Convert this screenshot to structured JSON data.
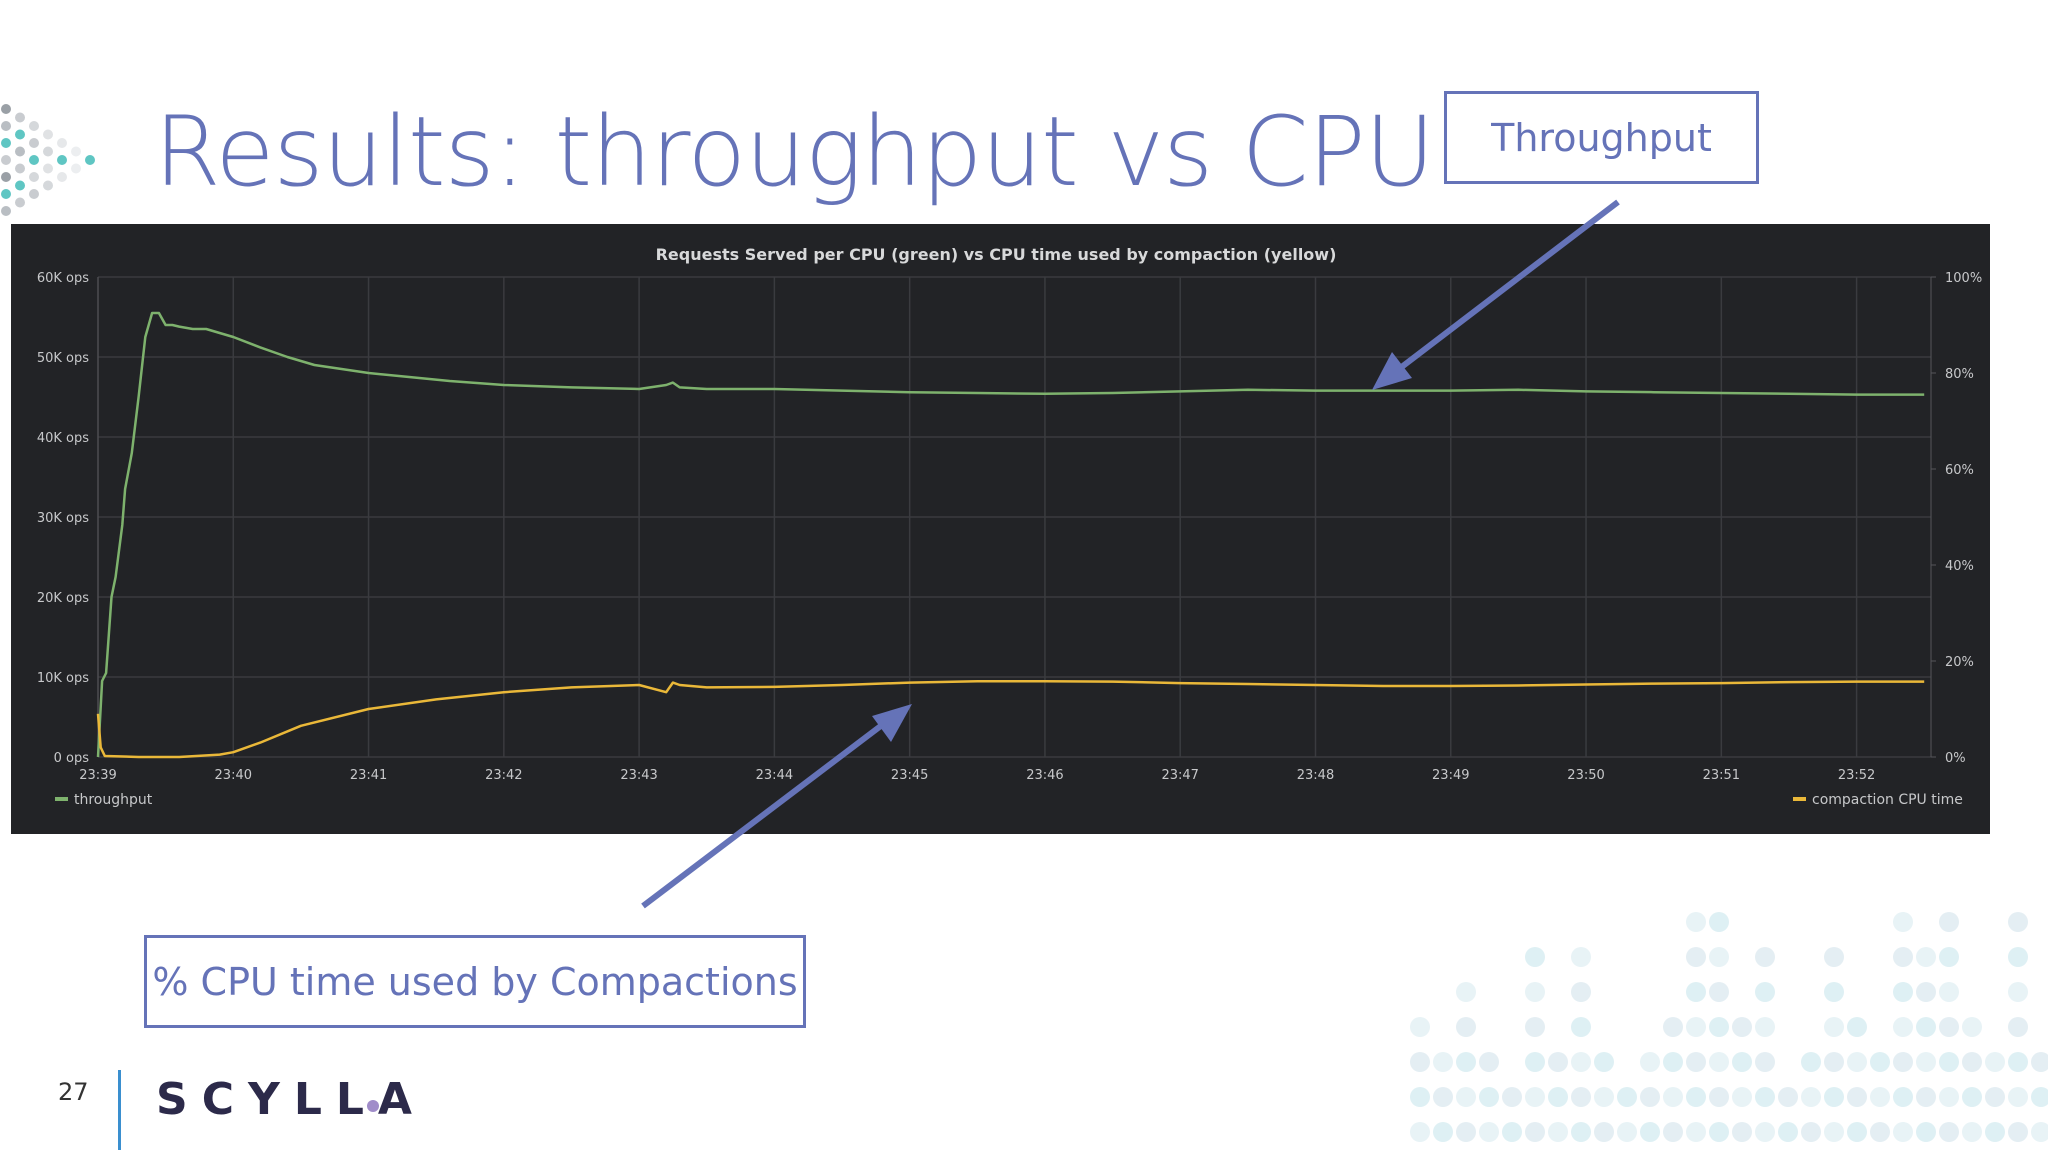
{
  "slide": {
    "title": "Results: throughput vs CPU",
    "page_number": "27",
    "logo_text": "SCYLLA"
  },
  "callouts": {
    "throughput": "Throughput",
    "cpu": "% CPU time used by Compactions"
  },
  "colors": {
    "title_blue": "#6573b8",
    "panel_bg": "#222326",
    "throughput_green": "#7eb26d",
    "compaction_yellow": "#eab839",
    "logo_dot": "#a08cc9"
  },
  "chart_data": {
    "type": "line",
    "title": "Requests Served per CPU (green) vs CPU time used by compaction (yellow)",
    "x_ticks": [
      "23:39",
      "23:40",
      "23:41",
      "23:42",
      "23:43",
      "23:44",
      "23:45",
      "23:46",
      "23:47",
      "23:48",
      "23:49",
      "23:50",
      "23:51",
      "23:52"
    ],
    "y_left_ticks": [
      "0 ops",
      "10K ops",
      "20K ops",
      "30K ops",
      "40K ops",
      "50K ops",
      "60K ops"
    ],
    "y_right_ticks": [
      "0%",
      "20%",
      "40%",
      "60%",
      "80%",
      "100%"
    ],
    "y_left_range": [
      0,
      60000
    ],
    "y_right_range": [
      0,
      100
    ],
    "x_range_minutes": [
      0,
      13.55
    ],
    "grid": true,
    "legend": "bottom",
    "series": [
      {
        "name": "throughput",
        "axis": "left",
        "color": "#7eb26d",
        "x": [
          0.0,
          0.03,
          0.06,
          0.1,
          0.13,
          0.18,
          0.2,
          0.25,
          0.3,
          0.35,
          0.4,
          0.45,
          0.5,
          0.55,
          0.6,
          0.7,
          0.8,
          0.9,
          1.0,
          1.2,
          1.4,
          1.6,
          1.8,
          2.0,
          2.3,
          2.6,
          3.0,
          3.5,
          4.0,
          4.2,
          4.25,
          4.3,
          4.5,
          5.0,
          5.5,
          6.0,
          6.5,
          7.0,
          7.5,
          8.0,
          8.5,
          9.0,
          9.5,
          10.0,
          10.5,
          11.0,
          11.5,
          12.0,
          12.5,
          13.0,
          13.5
        ],
        "y": [
          0,
          9500,
          10500,
          20000,
          22500,
          29000,
          33500,
          38000,
          45000,
          52500,
          55500,
          55500,
          54000,
          54000,
          53800,
          53500,
          53500,
          53000,
          52500,
          51200,
          50000,
          49000,
          48500,
          48000,
          47500,
          47000,
          46500,
          46200,
          46000,
          46500,
          46800,
          46200,
          46000,
          46000,
          45800,
          45600,
          45500,
          45400,
          45500,
          45700,
          45900,
          45800,
          45800,
          45800,
          45900,
          45700,
          45600,
          45500,
          45400,
          45300,
          45300
        ]
      },
      {
        "name": "compaction CPU time",
        "axis": "right",
        "color": "#eab839",
        "x": [
          0.0,
          0.02,
          0.05,
          0.3,
          0.6,
          0.9,
          1.0,
          1.2,
          1.5,
          2.0,
          2.5,
          3.0,
          3.5,
          4.0,
          4.2,
          4.25,
          4.3,
          4.5,
          5.0,
          5.5,
          6.0,
          6.5,
          7.0,
          7.5,
          8.0,
          8.5,
          9.0,
          9.5,
          10.0,
          10.5,
          11.0,
          11.5,
          12.0,
          12.5,
          13.0,
          13.5
        ],
        "y": [
          9,
          2,
          0.2,
          0,
          0,
          0.5,
          1,
          3,
          6.5,
          10,
          12,
          13.5,
          14.5,
          15,
          13.5,
          15.5,
          15,
          14.5,
          14.6,
          15,
          15.5,
          15.8,
          15.8,
          15.7,
          15.4,
          15.2,
          15,
          14.8,
          14.8,
          14.9,
          15.1,
          15.3,
          15.4,
          15.6,
          15.7,
          15.7
        ]
      }
    ]
  }
}
